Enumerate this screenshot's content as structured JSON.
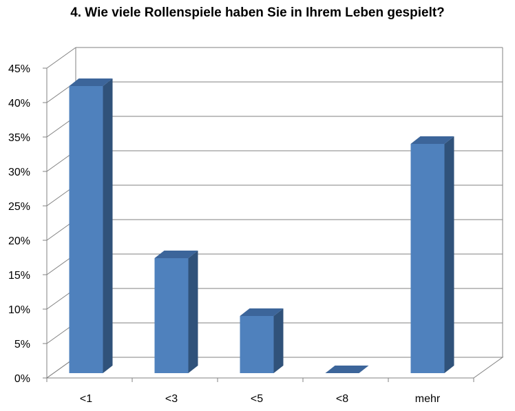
{
  "chart_data": {
    "type": "bar",
    "title": "4. Wie viele Rollenspiele haben Sie in Ihrem Leben gespielt?",
    "categories": [
      "<1",
      "<3",
      "<5",
      "<8",
      "mehr"
    ],
    "values": [
      41.7,
      16.7,
      8.3,
      0,
      33.3
    ],
    "value_unit": "%",
    "ylim": [
      0,
      45
    ],
    "yticks": [
      "0%",
      "5%",
      "10%",
      "15%",
      "20%",
      "25%",
      "30%",
      "35%",
      "40%",
      "45%"
    ],
    "xlabel": "",
    "ylabel": "",
    "grid": true,
    "style": "3d-column",
    "colors": {
      "bar_front": "#4F81BD",
      "bar_side": "#30527A",
      "bar_top": "#3C659A",
      "grid": "#808080"
    }
  }
}
